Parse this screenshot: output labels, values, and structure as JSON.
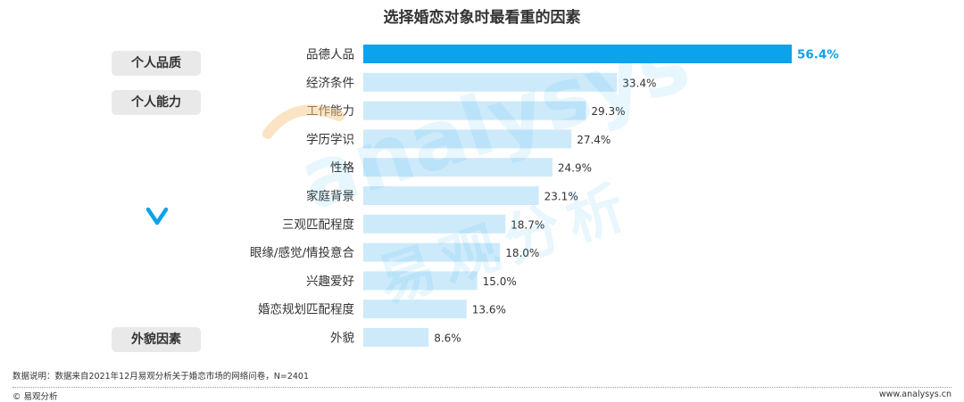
{
  "title": "选择婚恋对象时最看重的因素",
  "groups": [
    "个人品质",
    "个人能力",
    "外貌因素"
  ],
  "chart_data": {
    "type": "bar",
    "orientation": "horizontal",
    "title": "选择婚恋对象时最看重的因素",
    "categories": [
      "品德人品",
      "经济条件",
      "工作能力",
      "学历学识",
      "性格",
      "家庭背景",
      "三观匹配程度",
      "眼缘/感觉/情投意合",
      "兴趣爱好",
      "婚恋规划匹配程度",
      "外貌"
    ],
    "values": [
      56.4,
      33.4,
      29.3,
      27.4,
      24.9,
      23.1,
      18.7,
      18.0,
      15.0,
      13.6,
      8.6
    ],
    "value_labels": [
      "56.4%",
      "33.4%",
      "29.3%",
      "27.4%",
      "24.9%",
      "23.1%",
      "18.7%",
      "18.0%",
      "15.0%",
      "13.6%",
      "8.6%"
    ],
    "unit": "%",
    "highlight_index": 0,
    "colors": {
      "highlight": "#0aa3ec",
      "bar": "#cdeafb",
      "highlight_label": "#0aa3ec",
      "label": "#333333"
    },
    "grid": false,
    "legend": "none"
  },
  "watermark": {
    "latin": "analysys",
    "cjk": "易观分析"
  },
  "footnote": "数据说明：数据来自2021年12月易观分析关于婚恋市场的网络问卷，N=2401",
  "footer": {
    "left": "© 易观分析",
    "right": "www.analysys.cn"
  },
  "icons": {
    "chevron": "chevron-down-icon"
  }
}
